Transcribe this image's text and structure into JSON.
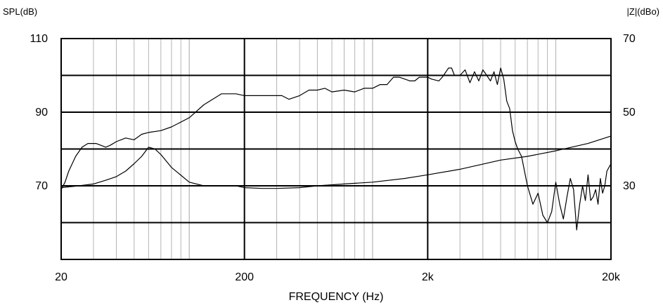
{
  "chart_data": {
    "type": "line",
    "xlabel": "FREQUENCY (Hz)",
    "y_left_label": "SPL(dB)",
    "y_right_label": "|Z|(dBo)",
    "x_scale": "log",
    "xlim": [
      20,
      20000
    ],
    "x_ticks": [
      {
        "value": 20,
        "label": "20"
      },
      {
        "value": 200,
        "label": "200"
      },
      {
        "value": 2000,
        "label": "2k"
      },
      {
        "value": 20000,
        "label": "20k"
      }
    ],
    "ylim_left": [
      50,
      110
    ],
    "ylim_right": [
      10,
      70
    ],
    "y_left_ticks": [
      {
        "value": 110,
        "label": "110"
      },
      {
        "value": 90,
        "label": "90"
      },
      {
        "value": 70,
        "label": "70"
      }
    ],
    "y_right_ticks": [
      {
        "value": 70,
        "label": "70"
      },
      {
        "value": 50,
        "label": "50"
      },
      {
        "value": 30,
        "label": "30"
      }
    ],
    "grid": true,
    "series": [
      {
        "axis": "left",
        "x": [
          20,
          21,
          22,
          24,
          26,
          28,
          31,
          35,
          37,
          40,
          45,
          50,
          55,
          60,
          70,
          80,
          100,
          120,
          150,
          180,
          200,
          250,
          300,
          320,
          350,
          400,
          450,
          500,
          550,
          600,
          700,
          800,
          900,
          1000,
          1100,
          1200,
          1300,
          1400,
          1500,
          1600,
          1700,
          1800,
          1900,
          2000,
          2100,
          2300,
          2400,
          2600,
          2700,
          2800,
          3000,
          3200,
          3400,
          3600,
          3800,
          4000,
          4200,
          4400,
          4600,
          4800,
          5000,
          5200,
          5400,
          5600,
          5800,
          6000,
          6200,
          6500,
          7000,
          7500,
          8000,
          8500,
          9000,
          9500,
          10000,
          10500,
          11000,
          11500,
          12000,
          12500,
          13000,
          13500,
          14000,
          14500,
          15000,
          15500,
          16000,
          16500,
          17000,
          17500,
          18000,
          18500,
          19000,
          19500,
          20000
        ],
        "y": [
          69,
          71,
          74,
          78,
          80.5,
          81.5,
          81.5,
          80.5,
          81,
          82,
          83,
          82.5,
          84,
          84.5,
          85,
          86,
          88.5,
          92,
          95,
          95,
          94.5,
          94.5,
          94.5,
          94.5,
          93.5,
          94.5,
          96,
          96,
          96.5,
          95.5,
          96,
          95.5,
          96.5,
          96.5,
          97.5,
          97.5,
          99.5,
          99.5,
          99,
          98.5,
          98.5,
          99.5,
          99.5,
          99.5,
          99,
          98.5,
          99.5,
          102,
          102,
          100,
          100,
          101.5,
          98,
          101,
          98.5,
          101.5,
          100,
          98.5,
          101,
          97.5,
          102,
          99,
          93,
          91,
          85,
          82,
          80,
          78,
          70,
          65,
          68,
          62,
          60,
          63,
          71,
          65,
          61,
          67,
          72,
          69,
          58,
          65,
          70,
          66,
          73,
          66,
          67,
          69,
          65,
          72,
          68,
          70,
          74,
          75,
          76
        ]
      },
      {
        "axis": "right",
        "x": [
          20,
          25,
          30,
          35,
          40,
          45,
          50,
          55,
          60,
          65,
          70,
          80,
          100,
          120,
          150,
          180,
          200,
          250,
          300,
          400,
          500,
          700,
          1000,
          1500,
          2000,
          3000,
          5000,
          7000,
          10000,
          15000,
          20000
        ],
        "y": [
          29.5,
          30,
          30.5,
          31.5,
          32.5,
          34,
          36,
          38,
          40.5,
          40,
          38.5,
          35,
          31,
          30,
          30,
          30,
          29.5,
          29.3,
          29.3,
          29.5,
          30,
          30.5,
          31,
          32,
          33,
          34.5,
          37,
          38,
          39.5,
          41.5,
          43.5
        ]
      }
    ]
  }
}
